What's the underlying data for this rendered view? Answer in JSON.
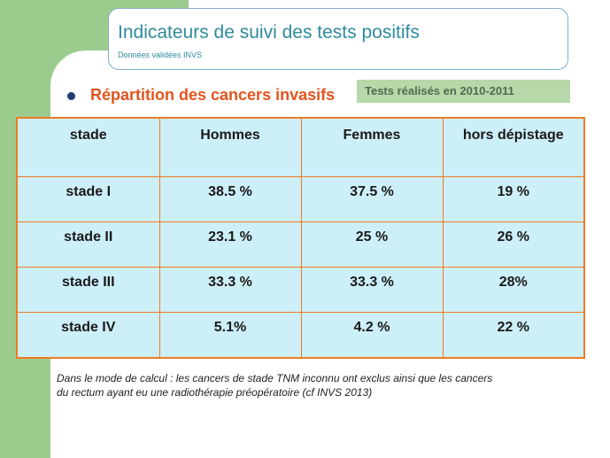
{
  "header": {
    "title": "Indicateurs de suivi des tests positifs",
    "subtitle": "Données validées INVS"
  },
  "bullet": "Répartition des cancers invasifs",
  "tests_tag": "Tests réalisés en 2010-2011",
  "table": {
    "columns": [
      "stade",
      "Hommes",
      "Femmes",
      "hors dépistage"
    ],
    "rows": [
      [
        "stade I",
        "38.5 %",
        "37.5 %",
        "19 %"
      ],
      [
        "stade II",
        "23.1 %",
        "25 %",
        "26 %"
      ],
      [
        "stade III",
        "33.3 %",
        "33.3 %",
        "28%"
      ],
      [
        "stade IV",
        "5.1%",
        "4.2 %",
        "22 %"
      ]
    ]
  },
  "footnote": [
    "Dans le mode de calcul : les cancers de stade TNM inconnu ont exclus ainsi que les cancers",
    "du rectum ayant eu une radiothérapie préopératoire (cf INVS 2013)"
  ],
  "colors": {
    "green_band": "#9ccb8e",
    "title": "#2f8a9e",
    "bullet_text": "#e3541f",
    "table_border": "#ee7b22",
    "table_fill": "#cdeff8"
  }
}
